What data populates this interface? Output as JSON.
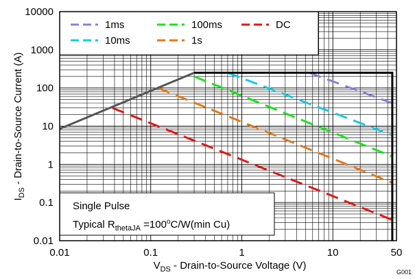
{
  "chart_data": {
    "type": "line",
    "x_scale": "log",
    "y_scale": "log",
    "xlim": [
      0.01,
      50
    ],
    "ylim": [
      0.01,
      10000
    ],
    "grid": true,
    "x_ticks": [
      "0.01",
      "0.1",
      "1",
      "10",
      "50"
    ],
    "y_ticks": [
      "0.01",
      "0.1",
      "1",
      "10",
      "100",
      "1000",
      "10000"
    ],
    "xlabel": {
      "main": "V",
      "sub": "DS",
      "rest": " - Drain-to-Source Voltage (V)"
    },
    "ylabel": {
      "main": "I",
      "sub": "DS",
      "rest": " - Drain-to-Source Current (A)"
    },
    "legend_position": "top-left",
    "series": [
      {
        "name": "1ms",
        "color": "#8a7fdc",
        "dash": true,
        "x": [
          5.5,
          45
        ],
        "y": [
          250,
          40
        ]
      },
      {
        "name": "10ms",
        "color": "#14c8e6",
        "dash": true,
        "x": [
          0.7,
          45
        ],
        "y": [
          250,
          5.8
        ]
      },
      {
        "name": "100ms",
        "color": "#14e614",
        "dash": true,
        "x": [
          0.3,
          45
        ],
        "y": [
          200,
          1.6
        ]
      },
      {
        "name": "1s",
        "color": "#e67814",
        "dash": true,
        "x": [
          0.12,
          45
        ],
        "y": [
          100,
          0.33
        ]
      },
      {
        "name": "DC",
        "color": "#e61414",
        "dash": true,
        "x": [
          0.038,
          45
        ],
        "y": [
          30,
          0.035
        ]
      }
    ],
    "limits": [
      {
        "kind": "rds-on",
        "color": "#555555",
        "x": [
          0.01,
          0.3
        ],
        "y": [
          8.5,
          250
        ]
      },
      {
        "kind": "boundary",
        "color": "#000000",
        "x": [
          0.3,
          45,
          45
        ],
        "y": [
          250,
          250,
          0.01
        ]
      }
    ],
    "annotation": {
      "line1": "Single Pulse",
      "line2_pre": "Typical R",
      "line2_sub": "thetaJA",
      "line2_post": " =100",
      "line2_sup": "o",
      "line2_end": "C/W(min Cu)"
    },
    "figure_id": "G001"
  }
}
